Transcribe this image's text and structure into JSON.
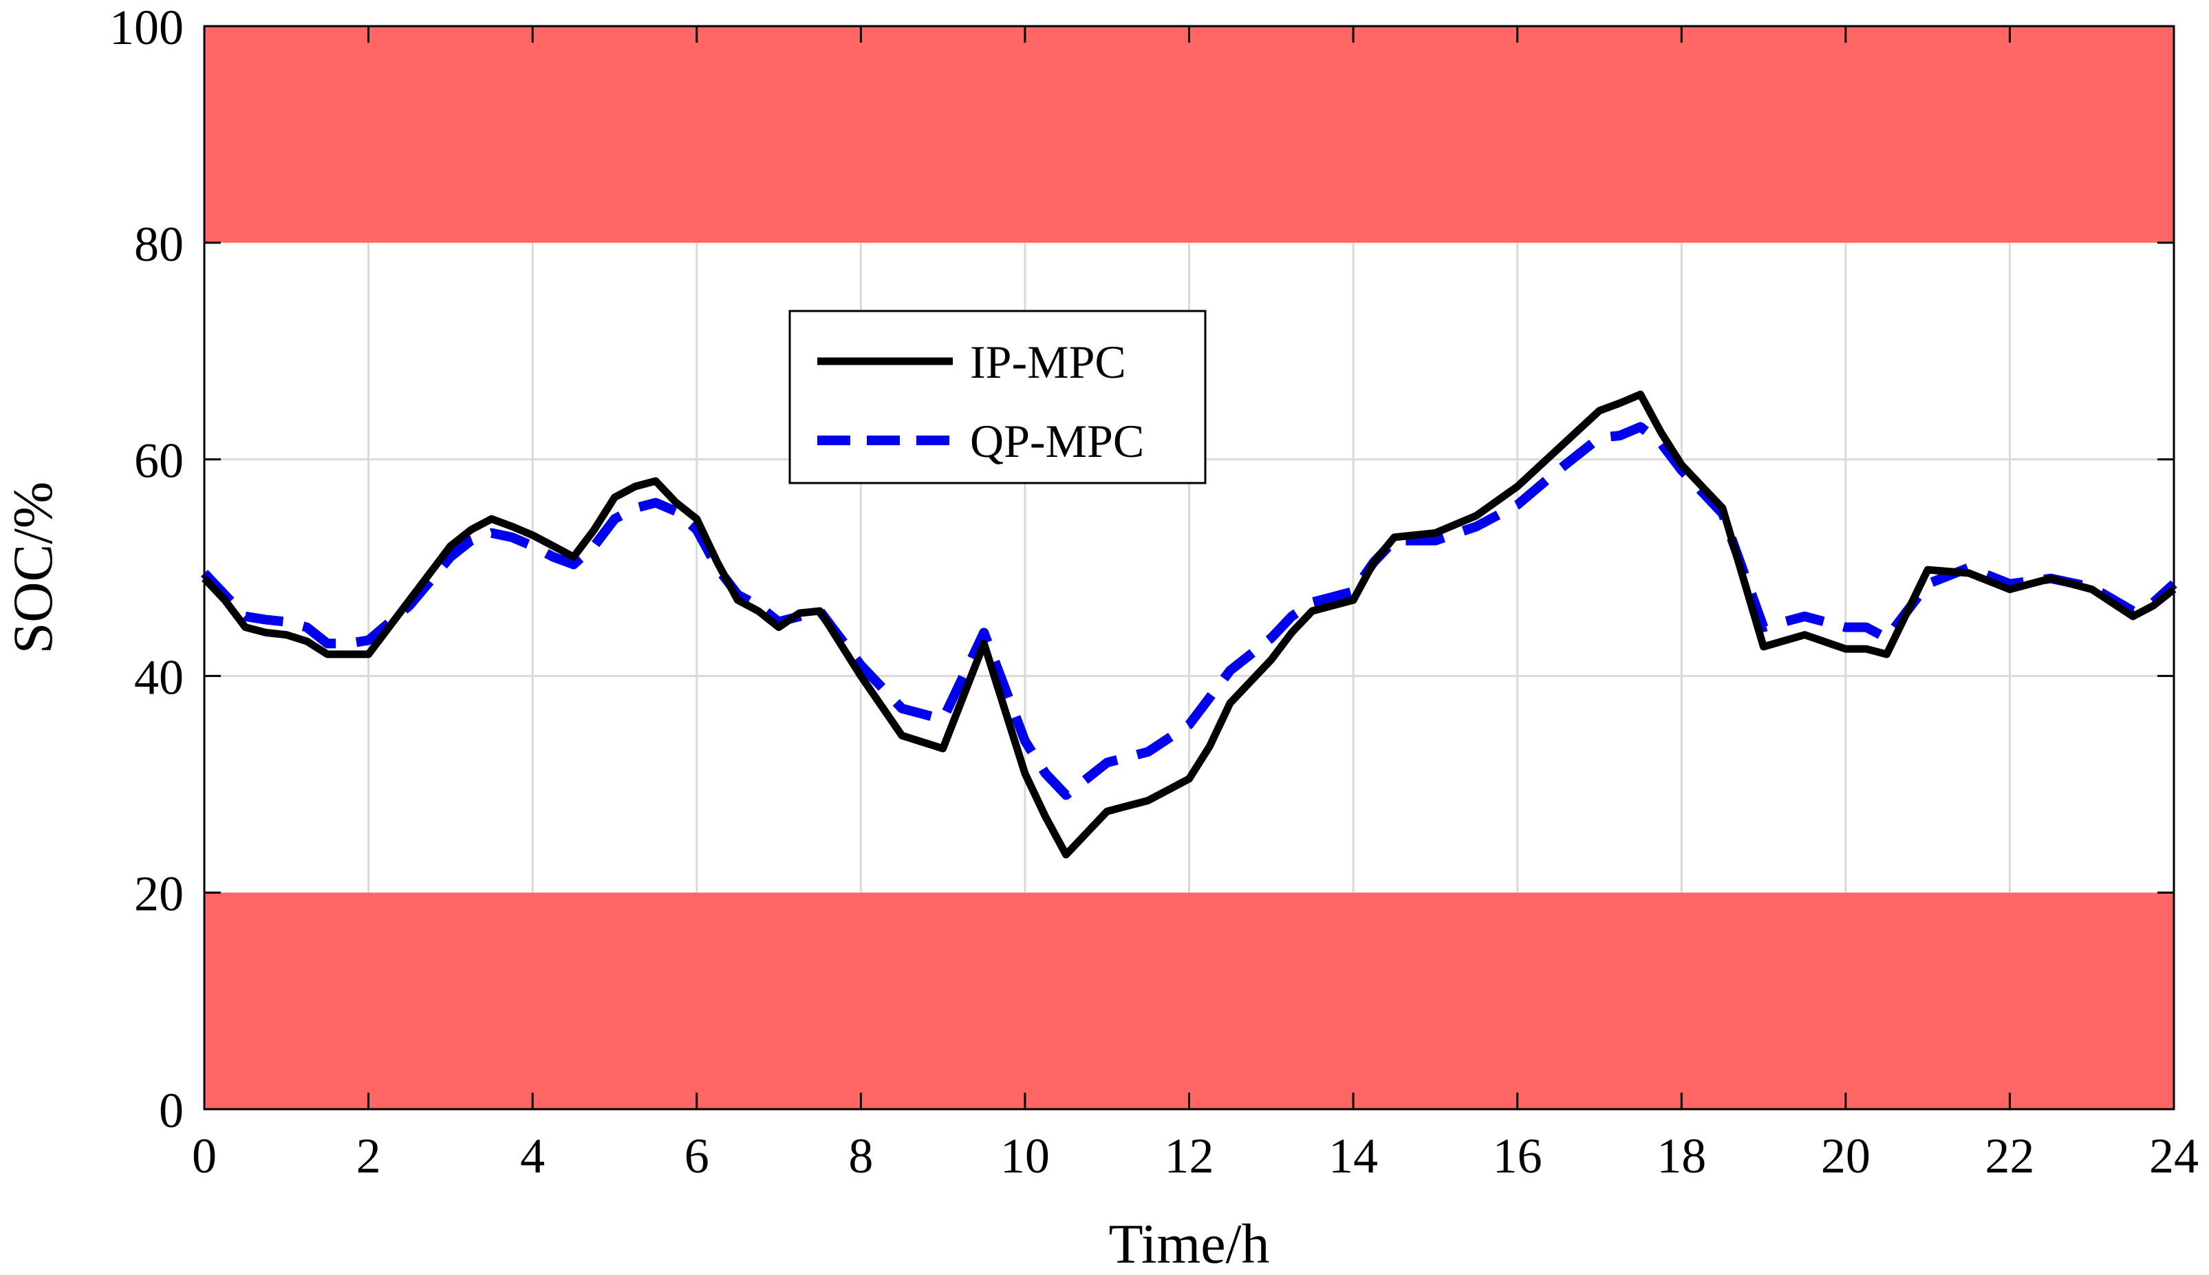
{
  "chart_data": {
    "type": "line",
    "title": "",
    "xlabel": "Time/h",
    "ylabel": "SOC/%",
    "xlim": [
      0,
      24
    ],
    "ylim": [
      0,
      100
    ],
    "xticks": [
      0,
      2,
      4,
      6,
      8,
      10,
      12,
      14,
      16,
      18,
      20,
      22,
      24
    ],
    "yticks": [
      0,
      20,
      40,
      60,
      80,
      100
    ],
    "grid": true,
    "legend_position": "upper-center",
    "bands": [
      {
        "y0": 80,
        "y1": 100,
        "color": "#ff6666"
      },
      {
        "y0": 0,
        "y1": 20,
        "color": "#ff6666"
      }
    ],
    "series": [
      {
        "name": "IP-MPC",
        "color": "#000000",
        "style": "solid",
        "x": [
          0,
          0.25,
          0.5,
          0.75,
          1,
          1.25,
          1.5,
          1.75,
          2,
          2.5,
          3,
          3.25,
          3.5,
          3.75,
          4,
          4.25,
          4.5,
          4.75,
          5,
          5.25,
          5.5,
          5.75,
          6,
          6.25,
          6.5,
          6.75,
          7,
          7.25,
          7.5,
          8,
          8.5,
          9,
          9.5,
          10,
          10.25,
          10.5,
          10.75,
          11,
          11.5,
          12,
          12.25,
          12.5,
          13,
          13.25,
          13.5,
          13.75,
          14,
          14.25,
          14.5,
          15,
          15.5,
          16,
          16.5,
          17,
          17.25,
          17.5,
          17.75,
          18,
          18.25,
          18.5,
          19,
          19.5,
          20,
          20.25,
          20.5,
          21,
          21.5,
          22,
          22.5,
          23,
          23.5,
          23.75,
          24
        ],
        "y": [
          49,
          47,
          44.5,
          44,
          43.8,
          43.2,
          42,
          42,
          42,
          47,
          52,
          53.5,
          54.5,
          53.8,
          53,
          52,
          51,
          53.5,
          56.5,
          57.5,
          58,
          56,
          54.5,
          50.5,
          47,
          46,
          44.5,
          45.8,
          46,
          40,
          34.5,
          33.3,
          43,
          31,
          27,
          23.5,
          25.5,
          27.5,
          28.5,
          30.5,
          33.5,
          37.5,
          41.5,
          44,
          46,
          46.5,
          47,
          50.5,
          52.8,
          53.2,
          54.8,
          57.5,
          61,
          64.5,
          65.2,
          66,
          62.5,
          59.5,
          57.5,
          55.5,
          42.7,
          43.8,
          42.5,
          42.5,
          42,
          49.8,
          49.5,
          48,
          49,
          48,
          45.5,
          46.5,
          48
        ]
      },
      {
        "name": "QP-MPC",
        "color": "#0000ee",
        "style": "dashed",
        "x": [
          0,
          0.25,
          0.5,
          0.75,
          1,
          1.25,
          1.5,
          1.75,
          2,
          2.5,
          3,
          3.25,
          3.5,
          3.75,
          4,
          4.25,
          4.5,
          4.75,
          5,
          5.25,
          5.5,
          5.75,
          6,
          6.25,
          6.5,
          6.75,
          7,
          7.25,
          7.5,
          8,
          8.5,
          9,
          9.5,
          10,
          10.25,
          10.5,
          10.75,
          11,
          11.5,
          12,
          12.25,
          12.5,
          13,
          13.25,
          13.5,
          13.75,
          14,
          14.25,
          14.5,
          15,
          15.5,
          16,
          16.5,
          17,
          17.25,
          17.5,
          17.75,
          18,
          18.25,
          18.5,
          19,
          19.5,
          20,
          20.25,
          20.5,
          21,
          21.5,
          22,
          22.5,
          23,
          23.5,
          23.75,
          24
        ],
        "y": [
          49.5,
          47.5,
          45.5,
          45.2,
          45,
          44.5,
          43,
          43,
          43.3,
          46.5,
          51,
          52.5,
          53.2,
          52.8,
          52,
          51,
          50.3,
          52,
          54.5,
          55.5,
          56,
          55.2,
          53.5,
          50,
          47.5,
          46.5,
          45,
          45.5,
          46,
          41,
          37,
          36,
          44,
          34,
          31,
          29,
          30.5,
          32,
          33,
          35.5,
          38,
          40.5,
          43.5,
          45.5,
          46.8,
          47.3,
          47.8,
          50.5,
          52.5,
          52.5,
          53.8,
          55.8,
          59,
          62,
          62.2,
          63,
          61.5,
          59,
          57,
          55,
          44.5,
          45.5,
          44.5,
          44.5,
          43.5,
          48.5,
          50,
          48.5,
          49,
          48.2,
          46,
          46.8,
          48.5
        ]
      }
    ]
  }
}
